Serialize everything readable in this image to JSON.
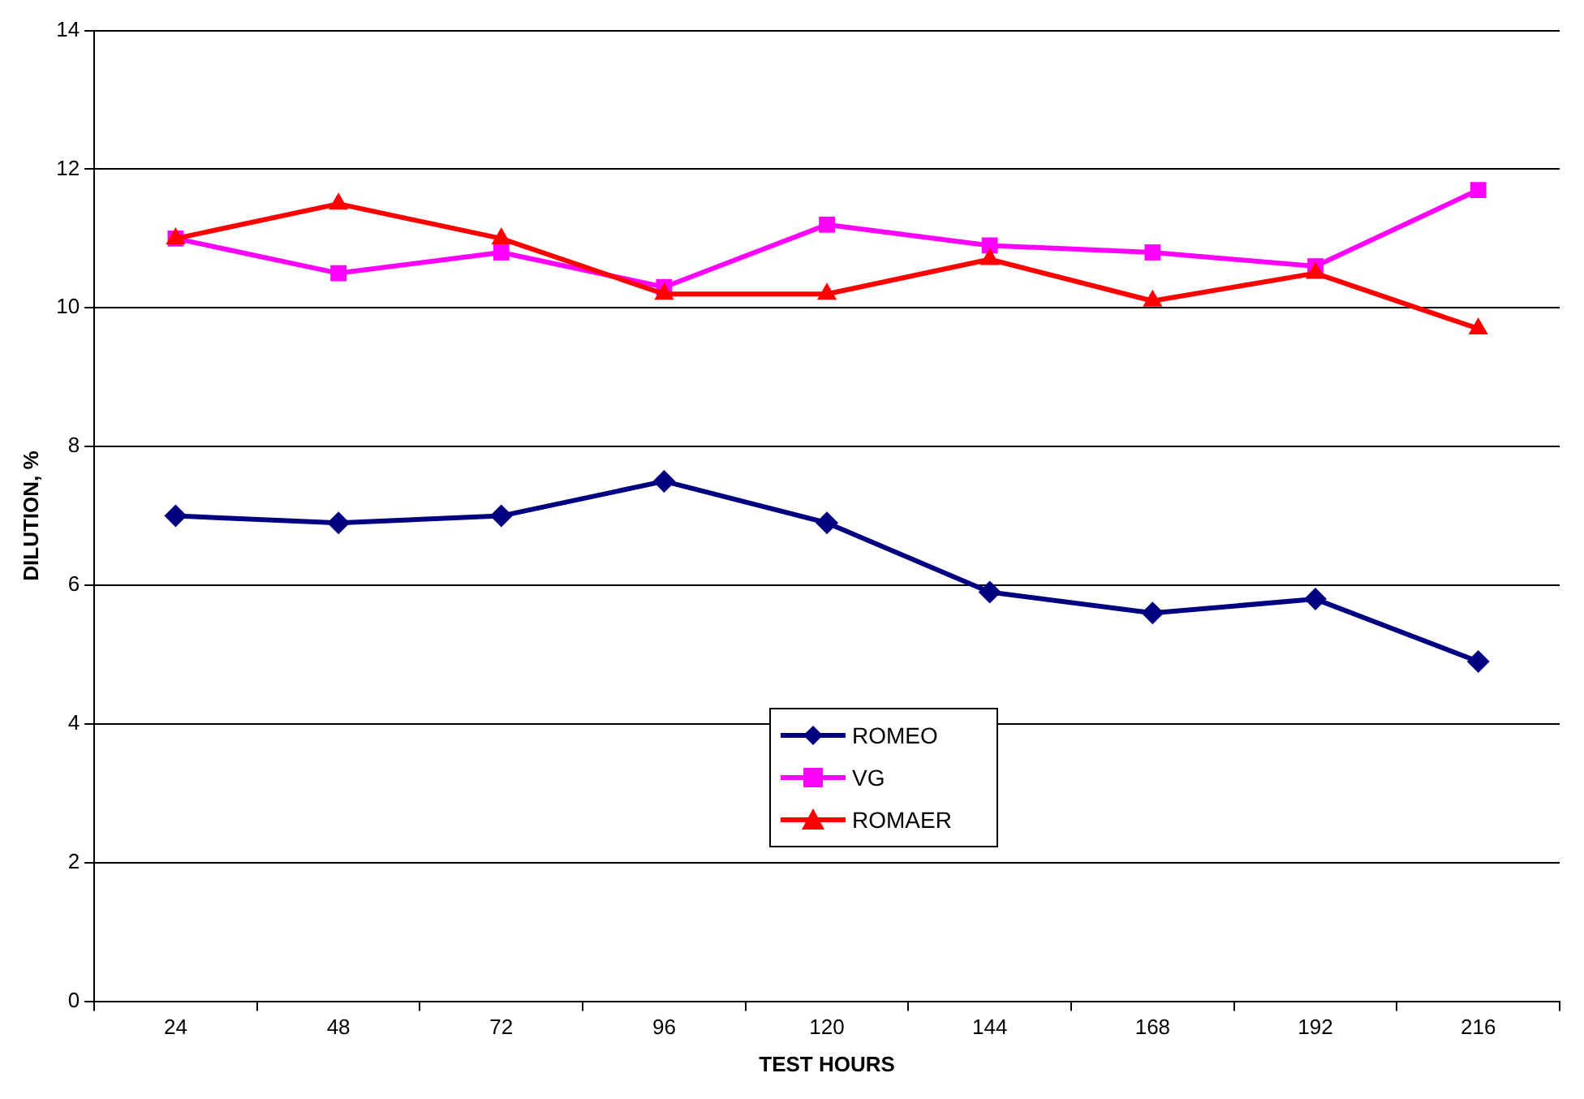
{
  "chart_data": {
    "type": "line",
    "xlabel": "TEST HOURS",
    "ylabel": "DILUTION, %",
    "categories": [
      "24",
      "48",
      "72",
      "96",
      "120",
      "144",
      "168",
      "192",
      "216"
    ],
    "series": [
      {
        "name": "ROMEO",
        "color": "#000080",
        "marker": "diamond",
        "values": [
          7.0,
          6.9,
          7.0,
          7.5,
          6.9,
          5.9,
          5.6,
          5.8,
          4.9
        ]
      },
      {
        "name": "VG",
        "color": "#ff00ff",
        "marker": "square",
        "values": [
          11.0,
          10.5,
          10.8,
          10.3,
          11.2,
          10.9,
          10.8,
          10.6,
          11.7
        ]
      },
      {
        "name": "ROMAER",
        "color": "#ff0000",
        "marker": "triangle",
        "values": [
          11.0,
          11.5,
          11.0,
          10.2,
          10.2,
          10.7,
          10.1,
          10.5,
          9.7
        ]
      }
    ],
    "ylim": [
      0,
      14
    ],
    "yticks": [
      0,
      2,
      4,
      6,
      8,
      10,
      12,
      14
    ],
    "grid": "y",
    "legend": "bottom",
    "line_style": "solid"
  }
}
